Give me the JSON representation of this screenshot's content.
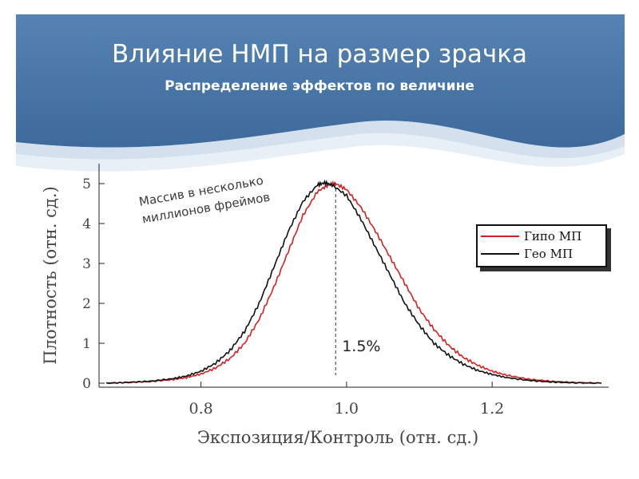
{
  "slide": {
    "title": "Влияние НМП на размер зрачка",
    "subtitle": "Распределение эффектов по величине"
  },
  "colors": {
    "header": "#4e79a8",
    "header_dark": "#3b6696",
    "series_hypo": "#d62020",
    "series_geo": "#111111"
  },
  "chart_data": {
    "type": "line",
    "xlabel": "Экспозиция/Контроль (отн. сд.)",
    "ylabel": "Плотность (отн. сд.)",
    "xlim": [
      0.66,
      1.36
    ],
    "ylim": [
      -0.1,
      5.5
    ],
    "xticks": [
      0.8,
      1.0,
      1.2
    ],
    "xtick_labels": [
      "0.8",
      "1.0",
      "1.2"
    ],
    "yticks": [
      0,
      1,
      2,
      3,
      4,
      5
    ],
    "ytick_labels": [
      "0",
      "1",
      "2",
      "3",
      "4",
      "5"
    ],
    "legend_position": "right",
    "annotations": {
      "array_note": [
        "Массив в несколько",
        "миллионов фреймов"
      ],
      "shift_label": "1.5%",
      "shift_x": 0.985
    },
    "series": [
      {
        "name": "Гипо МП",
        "color": "#d62020",
        "x": [
          0.67,
          0.7,
          0.73,
          0.76,
          0.78,
          0.8,
          0.82,
          0.84,
          0.86,
          0.88,
          0.9,
          0.92,
          0.94,
          0.96,
          0.975,
          0.985,
          1.0,
          1.02,
          1.04,
          1.06,
          1.08,
          1.1,
          1.12,
          1.14,
          1.16,
          1.18,
          1.2,
          1.22,
          1.25,
          1.28,
          1.31,
          1.35
        ],
        "y": [
          0.0,
          0.02,
          0.04,
          0.09,
          0.14,
          0.23,
          0.38,
          0.62,
          1.0,
          1.6,
          2.4,
          3.3,
          4.2,
          4.8,
          4.97,
          5.0,
          4.85,
          4.4,
          3.8,
          3.15,
          2.5,
          1.85,
          1.35,
          0.95,
          0.65,
          0.45,
          0.3,
          0.2,
          0.1,
          0.05,
          0.02,
          0.0
        ]
      },
      {
        "name": "Гео МП",
        "color": "#111111",
        "x": [
          0.67,
          0.7,
          0.73,
          0.76,
          0.78,
          0.8,
          0.82,
          0.84,
          0.86,
          0.88,
          0.9,
          0.92,
          0.94,
          0.96,
          0.97,
          0.98,
          1.0,
          1.02,
          1.04,
          1.06,
          1.08,
          1.1,
          1.12,
          1.14,
          1.16,
          1.18,
          1.2,
          1.22,
          1.25,
          1.28,
          1.31,
          1.35
        ],
        "y": [
          0.0,
          0.02,
          0.05,
          0.11,
          0.18,
          0.3,
          0.5,
          0.82,
          1.3,
          2.0,
          2.9,
          3.8,
          4.55,
          4.97,
          5.02,
          4.97,
          4.7,
          4.1,
          3.4,
          2.7,
          2.0,
          1.45,
          1.0,
          0.7,
          0.48,
          0.32,
          0.22,
          0.14,
          0.07,
          0.03,
          0.01,
          0.0
        ]
      }
    ]
  }
}
